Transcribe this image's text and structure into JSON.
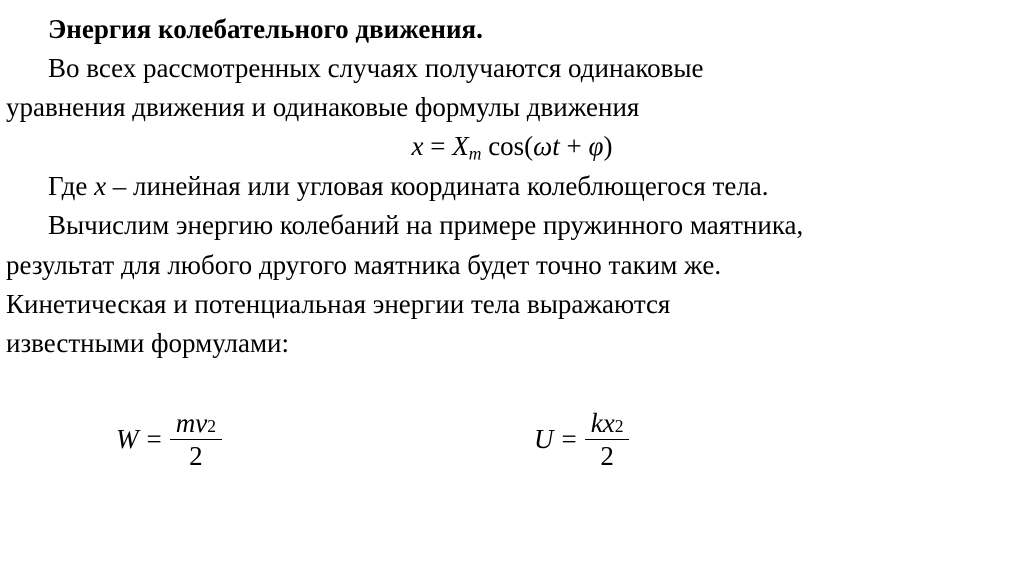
{
  "title": "Энергия колебательного движения.",
  "p1_a": "Во всех рассмотренных случаях получаются одинаковые",
  "p1_b": "уравнения движения и одинаковые формулы движения",
  "eq_main": {
    "x": "x",
    "eq": " = ",
    "X": "X",
    "m": "m",
    "cos": " cos(",
    "omega": "ω",
    "t": "t",
    "plus": " + ",
    "phi": "φ",
    "close": ")"
  },
  "p2_a": "Где ",
  "p2_var": "x",
  "p2_b": " – линейная или угловая координата колеблющегося тела.",
  "p3_a": "Вычислим энергию колебаний на примере пружинного маятника,",
  "p3_b": "результат для любого другого маятника будет точно таким же.",
  "p3_c": "Кинетическая и потенциальная энергии тела выражаются",
  "p3_d": "известными формулами:",
  "W": {
    "L": "W",
    "num_a": "m",
    "num_b": "v",
    "num_sup": "2",
    "den": "2"
  },
  "U": {
    "L": "U",
    "num_a": "k",
    "num_b": "x",
    "num_sup": "2",
    "den": "2"
  }
}
